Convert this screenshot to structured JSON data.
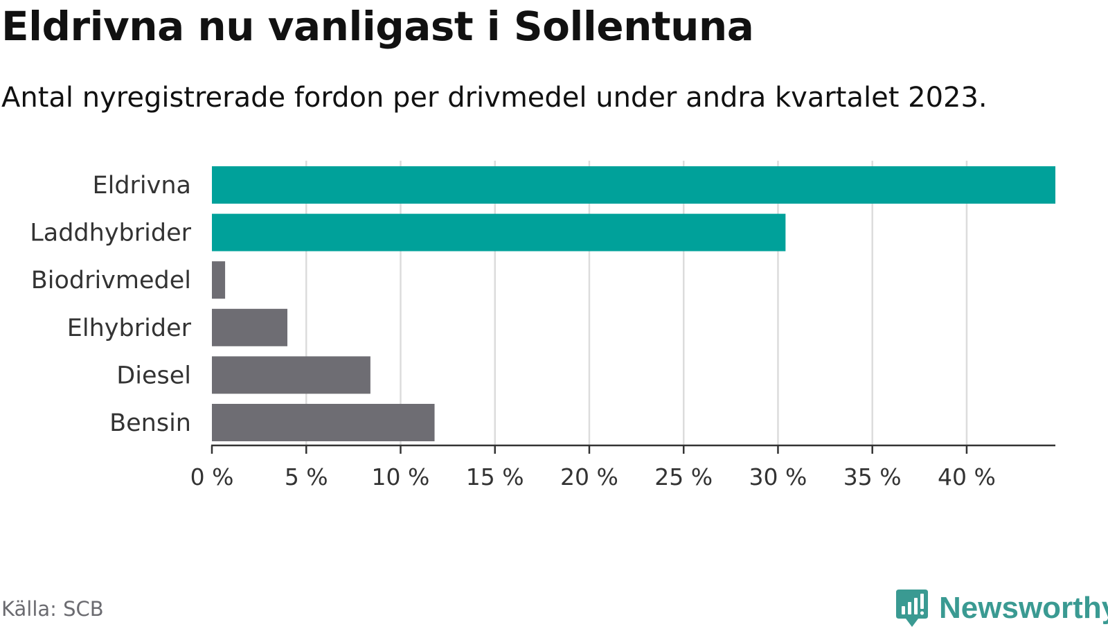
{
  "title": "Eldrivna nu vanligast i Sollentuna",
  "subtitle": "Antal nyregistrerade fordon per drivmedel under andra kvartalet 2023.",
  "source": "Källa: SCB",
  "brand": {
    "name": "Newsworthy",
    "color": "#3a9a92",
    "icon": "newsworthy-logo-icon"
  },
  "colors": {
    "highlight": "#00a19a",
    "default": "#6e6d73",
    "grid": "#dcdcdc",
    "axis": "#333333"
  },
  "chart_data": {
    "type": "bar",
    "orientation": "horizontal",
    "categories": [
      "Eldrivna",
      "Laddhybrider",
      "Biodrivmedel",
      "Elhybrider",
      "Diesel",
      "Bensin"
    ],
    "values": [
      44.7,
      30.4,
      0.7,
      4.0,
      8.4,
      11.8
    ],
    "highlighted": [
      true,
      true,
      false,
      false,
      false,
      false
    ],
    "unit": "%",
    "xlim": [
      0,
      44.7
    ],
    "x_ticks": [
      0,
      5,
      10,
      15,
      20,
      25,
      30,
      35,
      40
    ],
    "x_tick_labels": [
      "0 %",
      "5 %",
      "10 %",
      "15 %",
      "20 %",
      "25 %",
      "30 %",
      "35 %",
      "40 %"
    ],
    "grid": true
  }
}
